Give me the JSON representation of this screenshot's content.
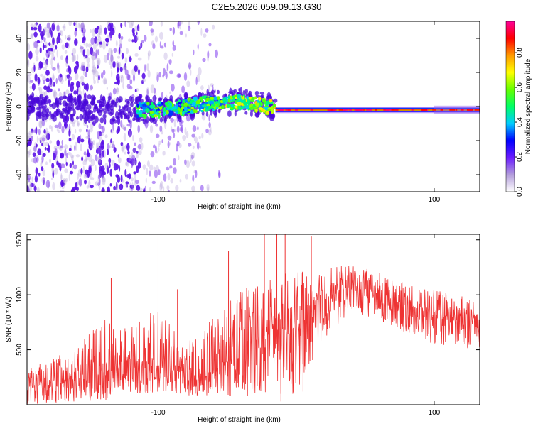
{
  "chart_data": [
    {
      "type": "heatmap",
      "title": "C2E5.2026.059.09.13.G30",
      "xlabel": "Height of straight line (km)",
      "ylabel": "Frequency (Hz)",
      "xlim": [
        -195,
        133
      ],
      "ylim": [
        -50,
        50
      ],
      "x_ticks": [
        -100,
        100
      ],
      "y_ticks": [
        -40,
        -20,
        0,
        20,
        40
      ],
      "colorbar": {
        "label": "Normalized spectral amplitude",
        "range": [
          0.0,
          0.98
        ],
        "ticks": [
          0.0,
          0.2,
          0.4,
          0.6,
          0.8
        ],
        "colormap": [
          "#ffffff",
          "#b39ddb",
          "#6a1bff",
          "#0000ff",
          "#00ccff",
          "#00ff66",
          "#66ff00",
          "#ffff00",
          "#ff9900",
          "#ff0000",
          "#ff0099"
        ]
      },
      "ridge": [
        {
          "x": -195,
          "f": 0
        },
        {
          "x": -120,
          "f": -2
        },
        {
          "x": -100,
          "f": -2
        },
        {
          "x": -80,
          "f": 0
        },
        {
          "x": -60,
          "f": 2
        },
        {
          "x": -40,
          "f": 3
        },
        {
          "x": -25,
          "f": 1
        },
        {
          "x": -15,
          "f": -1
        },
        {
          "x": 0,
          "f": -2
        },
        {
          "x": 100,
          "f": -2
        },
        {
          "x": 133,
          "f": -2
        }
      ]
    },
    {
      "type": "line",
      "xlabel": "Height of straight line (km)",
      "ylabel": "SNR (10 * v/v)",
      "xlim": [
        -195,
        133
      ],
      "ylim": [
        0,
        1550
      ],
      "x_ticks": [
        -100,
        100
      ],
      "y_ticks": [
        500,
        1000,
        1500
      ],
      "color": "#ee3333",
      "envelope": [
        {
          "x": -195,
          "lo": 0,
          "base": 200,
          "hi": 350
        },
        {
          "x": -160,
          "lo": 20,
          "base": 230,
          "hi": 500
        },
        {
          "x": -140,
          "lo": 40,
          "base": 300,
          "hi": 800
        },
        {
          "x": -120,
          "lo": 80,
          "base": 330,
          "hi": 700
        },
        {
          "x": -100,
          "lo": 120,
          "base": 360,
          "hi": 900
        },
        {
          "x": -80,
          "lo": 80,
          "base": 280,
          "hi": 550
        },
        {
          "x": -60,
          "lo": 60,
          "base": 260,
          "hi": 800
        },
        {
          "x": -40,
          "lo": 80,
          "base": 500,
          "hi": 1100
        },
        {
          "x": -20,
          "lo": 50,
          "base": 650,
          "hi": 1200
        },
        {
          "x": 0,
          "lo": 100,
          "base": 700,
          "hi": 1200
        },
        {
          "x": 20,
          "lo": 600,
          "base": 950,
          "hi": 1250
        },
        {
          "x": 40,
          "lo": 850,
          "base": 1080,
          "hi": 1280
        },
        {
          "x": 60,
          "lo": 750,
          "base": 1000,
          "hi": 1200
        },
        {
          "x": 80,
          "lo": 650,
          "base": 900,
          "hi": 1100
        },
        {
          "x": 100,
          "lo": 550,
          "base": 820,
          "hi": 1050
        },
        {
          "x": 133,
          "lo": 500,
          "base": 780,
          "hi": 950
        }
      ],
      "spikes": [
        {
          "x": -100,
          "v": 1550
        },
        {
          "x": -134,
          "v": 1150
        },
        {
          "x": -86,
          "v": 1050
        },
        {
          "x": -49,
          "v": 1400
        },
        {
          "x": -23,
          "v": 1550
        },
        {
          "x": -14,
          "v": 1550
        },
        {
          "x": -8,
          "v": 1550
        },
        {
          "x": 11,
          "v": 1530
        }
      ],
      "dips": [
        {
          "x": -11,
          "v": 30
        },
        {
          "x": 5,
          "v": 120
        },
        {
          "x": -3,
          "v": 300
        }
      ]
    }
  ]
}
